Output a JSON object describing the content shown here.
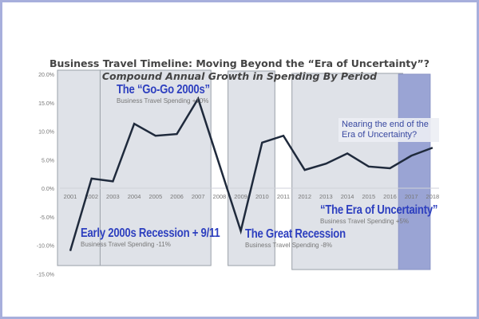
{
  "chart_data": {
    "type": "line",
    "title": "Business Travel Timeline: Moving Beyond the “Era of Uncertainty”?",
    "subtitle": "Compound Annual Growth in Spending By Period",
    "xlabel": "",
    "ylabel": "",
    "ylim": [
      -15,
      20
    ],
    "yticks": [
      "20.0%",
      "15.0%",
      "10.0%",
      "5.0%",
      "0.0%",
      "-5.0%",
      "-10.0%",
      "-15.0%"
    ],
    "ytick_values": [
      20,
      15,
      10,
      5,
      0,
      -5,
      -10,
      -15
    ],
    "categories": [
      "2001",
      "2002",
      "2003",
      "2004",
      "2005",
      "2006",
      "2007",
      "2008",
      "2009",
      "2010",
      "2011",
      "2012",
      "2013",
      "2014",
      "2015",
      "2016",
      "2017",
      "2018"
    ],
    "values": [
      -11.0,
      1.7,
      1.2,
      11.3,
      9.2,
      9.5,
      15.7,
      4.1,
      -7.5,
      8.0,
      9.2,
      3.2,
      4.3,
      6.1,
      3.8,
      3.5,
      5.7,
      7.1
    ],
    "line_color": "#1f2a3c",
    "periods": [
      {
        "name": "Early 2000s Recession + 9/11",
        "detail": "Business Travel Spending -11%",
        "from": "2001",
        "to": "2002",
        "color": "#dfe2e8"
      },
      {
        "name": "The “Go-Go 2000s”",
        "detail": "Business Travel Spending +10%",
        "from": "2003",
        "to": "2007",
        "color": "#dfe2e8"
      },
      {
        "name": "The Great Recession",
        "detail": "Business Travel Spending -8%",
        "from": "2009",
        "to": "2010",
        "color": "#dfe2e8"
      },
      {
        "name": "“The Era of Uncertainty”",
        "detail": "Business Travel Spending +5%",
        "from": "2012",
        "to": "2016",
        "color": "#dfe2e8"
      },
      {
        "name": "",
        "detail": "",
        "from": "2017",
        "to": "2018",
        "color": "#9aa4d4"
      }
    ],
    "annotation": "Nearing the end of the Era of Uncertainty?"
  }
}
